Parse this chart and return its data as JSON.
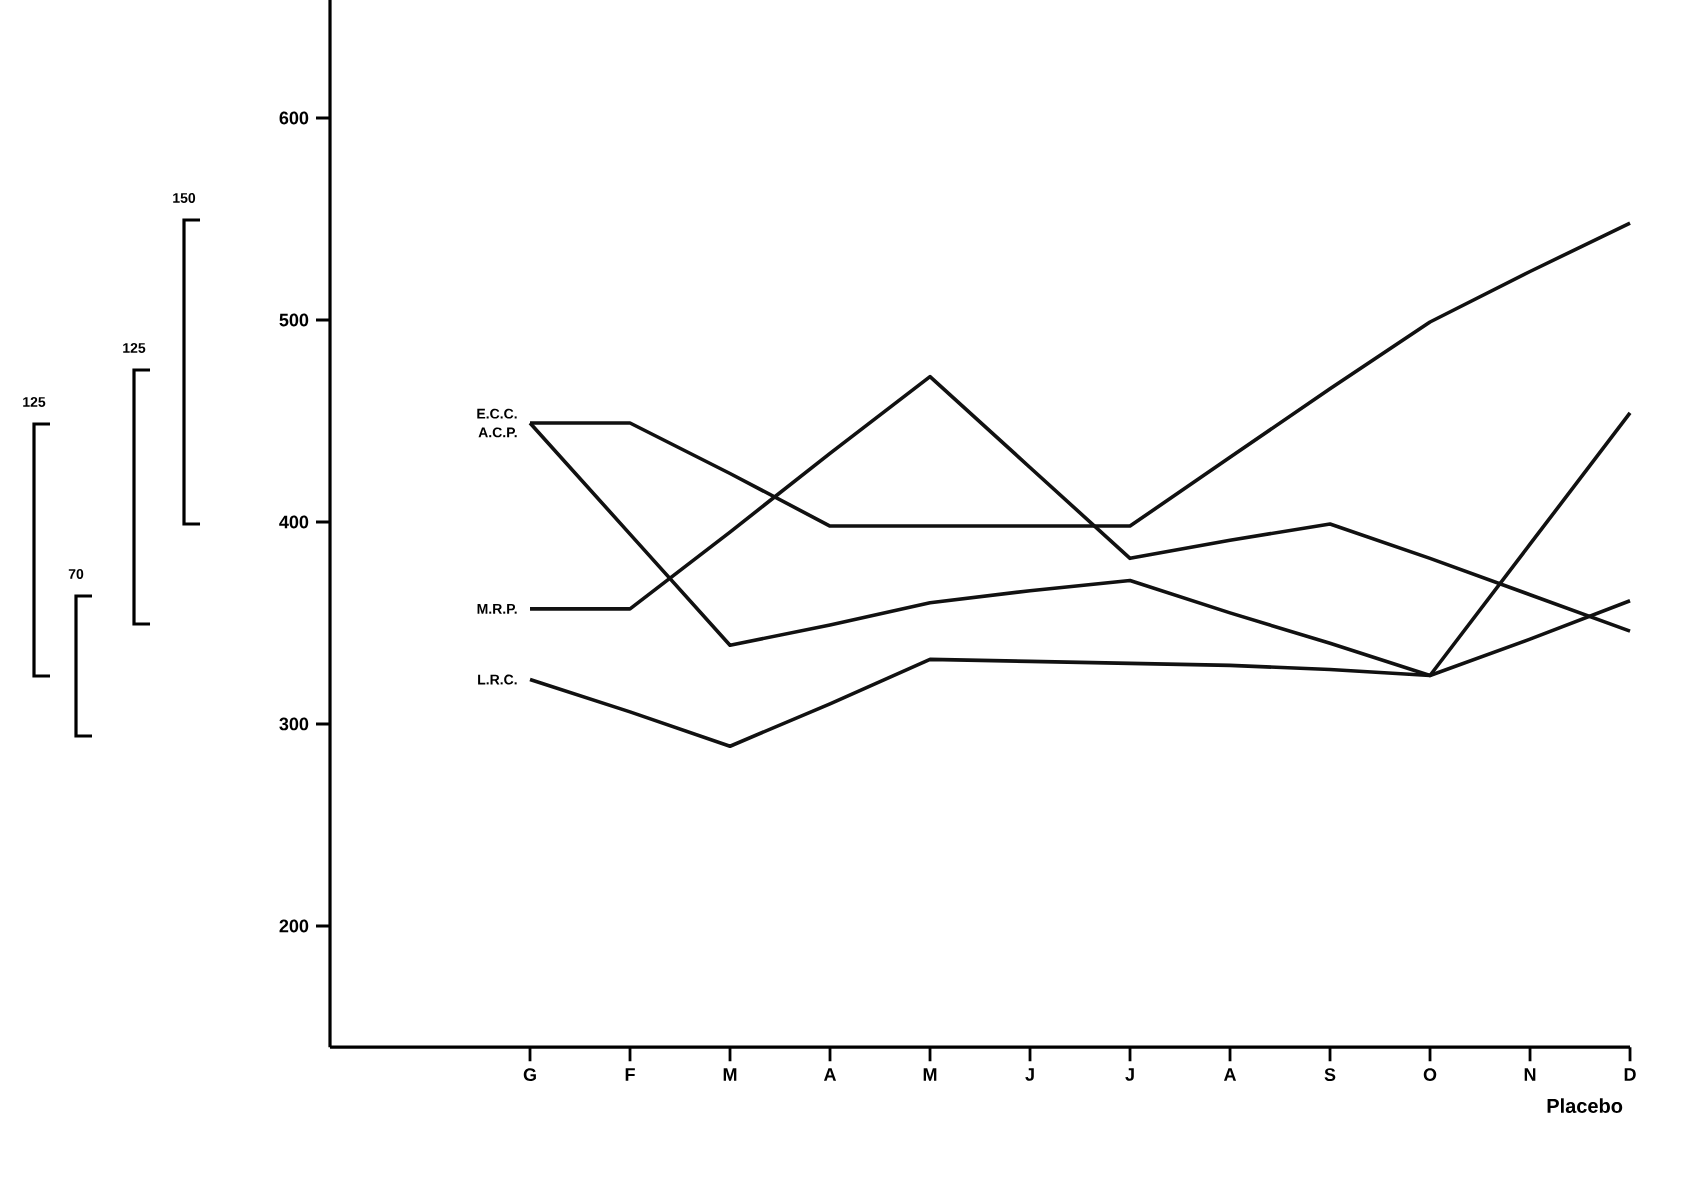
{
  "chart_data": {
    "type": "line",
    "xlabel": "Placebo",
    "categories": [
      "G",
      "F",
      "M",
      "A",
      "M",
      "J",
      "J",
      "A",
      "S",
      "O",
      "N",
      "D"
    ],
    "series": [
      {
        "name": "E.C.C.",
        "color": "#111111",
        "values": [
          449,
          449,
          424,
          398,
          398,
          398,
          398,
          432,
          466,
          499,
          524,
          548
        ]
      },
      {
        "name": "A.C.P.",
        "color": "#111111",
        "values": [
          449,
          394,
          339,
          349,
          360,
          366,
          371,
          355,
          340,
          324,
          342,
          361
        ]
      },
      {
        "name": "M.R.P.",
        "color": "#111111",
        "values": [
          357,
          357,
          395,
          434,
          472,
          427,
          382,
          391,
          399,
          382,
          364,
          346
        ]
      },
      {
        "name": "L.R.C.",
        "color": "#111111",
        "values": [
          322,
          306,
          289,
          310,
          332,
          331,
          330,
          329,
          327,
          324,
          389,
          454
        ]
      }
    ],
    "ylim": [
      140,
      660
    ],
    "yticks": [
      200,
      300,
      400,
      500,
      600
    ],
    "annotations": [
      "150",
      "125",
      "125",
      "70"
    ],
    "grid": false,
    "legend": false,
    "marker": "none",
    "line_style": "solid"
  }
}
